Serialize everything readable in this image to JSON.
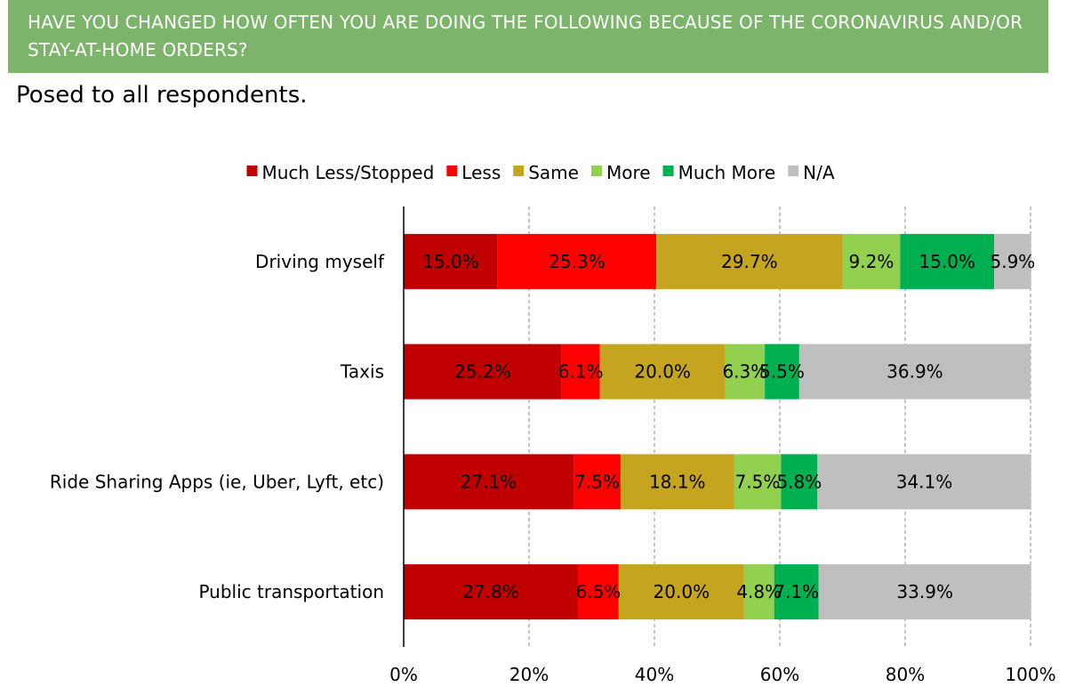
{
  "header": {
    "title": "HAVE YOU CHANGED HOW OFTEN YOU ARE DOING THE FOLLOWING BECAUSE OF THE CORONAVIRUS AND/OR STAY-AT-HOME ORDERS?"
  },
  "subtitle": "Posed to all respondents.",
  "colors": {
    "header_bg": "#7db46c",
    "much_less": "#c00000",
    "less": "#ff0000",
    "same": "#c5a41f",
    "more": "#92d050",
    "much_more": "#00b050",
    "na": "#bfbfbf"
  },
  "chart_data": {
    "type": "bar",
    "orientation": "horizontal",
    "stacked": true,
    "percent_stacked": true,
    "categories": [
      "Driving myself",
      "Taxis",
      "Ride Sharing Apps (ie, Uber, Lyft, etc)",
      "Public transportation"
    ],
    "series": [
      {
        "name": "Much Less/Stopped",
        "color": "#c00000",
        "values": [
          15.0,
          25.2,
          27.1,
          27.8
        ],
        "labels": [
          "15.0%",
          "25.2%",
          "27.1%",
          "27.8%"
        ]
      },
      {
        "name": "Less",
        "color": "#ff0000",
        "values": [
          25.3,
          6.1,
          7.5,
          6.5
        ],
        "labels": [
          "25.3%",
          "6.1%",
          "7.5%",
          "6.5%"
        ]
      },
      {
        "name": "Same",
        "color": "#c5a41f",
        "values": [
          29.7,
          20.0,
          18.1,
          20.0
        ],
        "labels": [
          "29.7%",
          "20.0%",
          "18.1%",
          "20.0%"
        ]
      },
      {
        "name": "More",
        "color": "#92d050",
        "values": [
          9.2,
          6.3,
          7.5,
          4.8
        ],
        "labels": [
          "9.2%",
          "6.3%",
          "7.5%",
          "4.8%"
        ]
      },
      {
        "name": "Much More",
        "color": "#00b050",
        "values": [
          15.0,
          5.5,
          5.8,
          7.1
        ],
        "labels": [
          "15.0%",
          "5.5%",
          "5.8%",
          "7.1%"
        ]
      },
      {
        "name": "N/A",
        "color": "#bfbfbf",
        "values": [
          5.9,
          36.9,
          34.1,
          33.9
        ],
        "labels": [
          "5.9%",
          "36.9%",
          "34.1%",
          "33.9%"
        ]
      }
    ],
    "x_ticks": [
      "0%",
      "20%",
      "40%",
      "60%",
      "80%",
      "100%"
    ],
    "xlim": [
      0,
      100
    ],
    "grid": "vertical dashed",
    "legend_position": "top-center"
  }
}
